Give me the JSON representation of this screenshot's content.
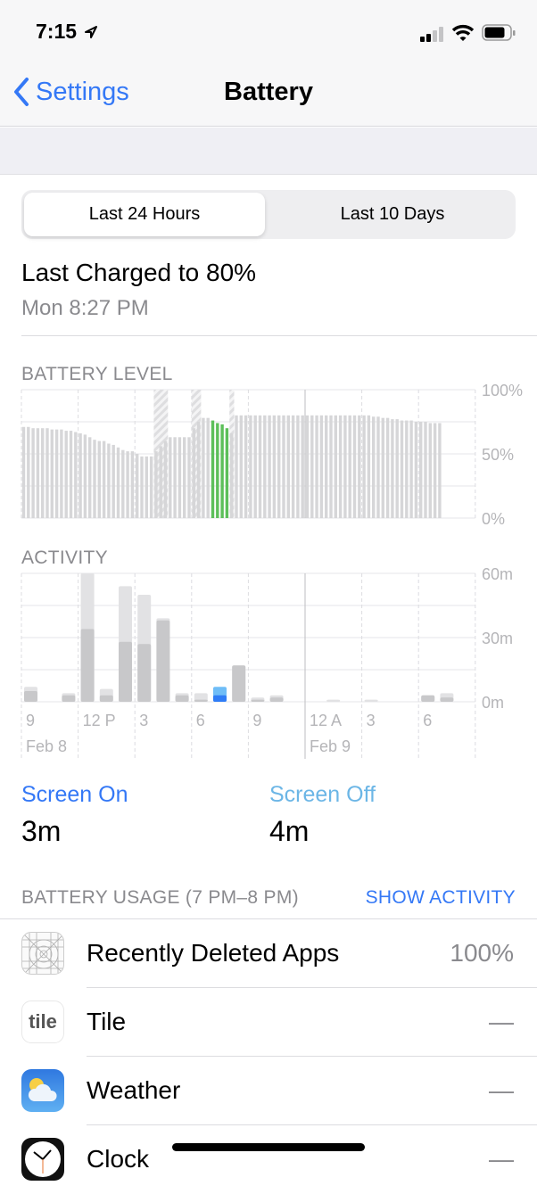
{
  "status_bar": {
    "time": "7:15",
    "icons": [
      "location-arrow-icon",
      "cellular-signal-icon",
      "wifi-icon",
      "battery-icon"
    ]
  },
  "nav": {
    "back_label": "Settings",
    "title": "Battery"
  },
  "segments": {
    "selected": "Last 24 Hours",
    "other": "Last 10 Days"
  },
  "last_charged": {
    "title": "Last Charged to 80%",
    "time": "Mon 8:27 PM"
  },
  "battery_level": {
    "header": "BATTERY LEVEL",
    "y_labels": [
      "100%",
      "50%",
      "0%"
    ],
    "chart_data": {
      "type": "bar",
      "ylim": [
        0,
        100
      ],
      "interval_minutes": 15,
      "start": "9 AM Feb 8",
      "values": [
        71,
        71,
        70,
        70,
        70,
        70,
        69,
        69,
        69,
        68,
        68,
        67,
        66,
        65,
        63,
        61,
        60,
        60,
        58,
        57,
        55,
        53,
        52,
        52,
        50,
        48,
        48,
        48,
        52,
        56,
        60,
        63,
        63,
        63,
        63,
        63,
        70,
        75,
        78,
        78,
        76,
        74,
        73,
        70,
        66,
        80,
        80,
        80,
        80,
        80,
        80,
        80,
        80,
        80,
        80,
        80,
        80,
        80,
        80,
        80,
        80,
        80,
        80,
        80,
        80,
        80,
        80,
        80,
        80,
        80,
        80,
        80,
        80,
        80,
        79,
        79,
        78,
        78,
        77,
        77,
        76,
        76,
        76,
        75,
        75,
        75,
        74,
        74,
        74
      ],
      "charging": [
        [
          "4:00 PM",
          "4:45 PM"
        ],
        [
          "6:00 PM",
          "6:30 PM"
        ],
        [
          "8:00 PM",
          "8:15 PM"
        ]
      ],
      "highlight": [
        "7 PM",
        "8 PM"
      ],
      "colors": {
        "bar": "#d6d6d8",
        "highlight": "#5cbf5a",
        "charging": "#e4e4e6"
      }
    }
  },
  "activity": {
    "header": "ACTIVITY",
    "y_labels": [
      "60m",
      "30m",
      "0m"
    ],
    "x_labels": [
      {
        "slot": 0,
        "text": "9"
      },
      {
        "slot": 3,
        "text": "12 P"
      },
      {
        "slot": 6,
        "text": "3"
      },
      {
        "slot": 9,
        "text": "6"
      },
      {
        "slot": 12,
        "text": "9"
      },
      {
        "slot": 15,
        "text": "12 A"
      },
      {
        "slot": 18,
        "text": "3"
      },
      {
        "slot": 21,
        "text": "6"
      }
    ],
    "dates": [
      {
        "slot": 0,
        "text": "Feb 8"
      },
      {
        "slot": 15,
        "text": "Feb 9"
      }
    ],
    "chart_data": {
      "type": "bar",
      "stacked": true,
      "ylim": [
        0,
        60
      ],
      "unit": "minutes",
      "categories_start": "9 AM Feb 8",
      "interval": "1 hour",
      "series": [
        {
          "name": "Screen On",
          "values": [
            5,
            0,
            3,
            34,
            3,
            28,
            27,
            38,
            3,
            1,
            3,
            17,
            1,
            2,
            0,
            0,
            0,
            0,
            0,
            0,
            0,
            3,
            2,
            0
          ]
        },
        {
          "name": "Screen Off",
          "values": [
            2,
            0,
            1,
            26,
            3,
            26,
            23,
            1,
            1,
            3,
            4,
            0,
            1,
            1,
            0,
            0,
            1,
            0,
            1,
            0,
            0,
            0,
            2,
            0
          ]
        }
      ],
      "highlight_slot": 10,
      "colors": {
        "on": "#c8c8ca",
        "off": "#e2e2e4",
        "on_hl": "#2f7cf6",
        "off_hl": "#6fbdf7"
      }
    }
  },
  "summary": {
    "screen_on_label": "Screen On",
    "screen_on_value": "3m",
    "screen_off_label": "Screen Off",
    "screen_off_value": "4m"
  },
  "usage": {
    "header": "BATTERY USAGE (7 PM–8 PM)",
    "action": "SHOW ACTIVITY",
    "apps": [
      {
        "name": "Recently Deleted Apps",
        "value": "100%"
      },
      {
        "name": "Tile",
        "value": "—",
        "icon_text": "tile"
      },
      {
        "name": "Weather",
        "value": "—"
      },
      {
        "name": "Clock",
        "value": "—"
      }
    ]
  },
  "colors": {
    "accent": "#3478f6",
    "screen_off": "#6cb6e6"
  }
}
